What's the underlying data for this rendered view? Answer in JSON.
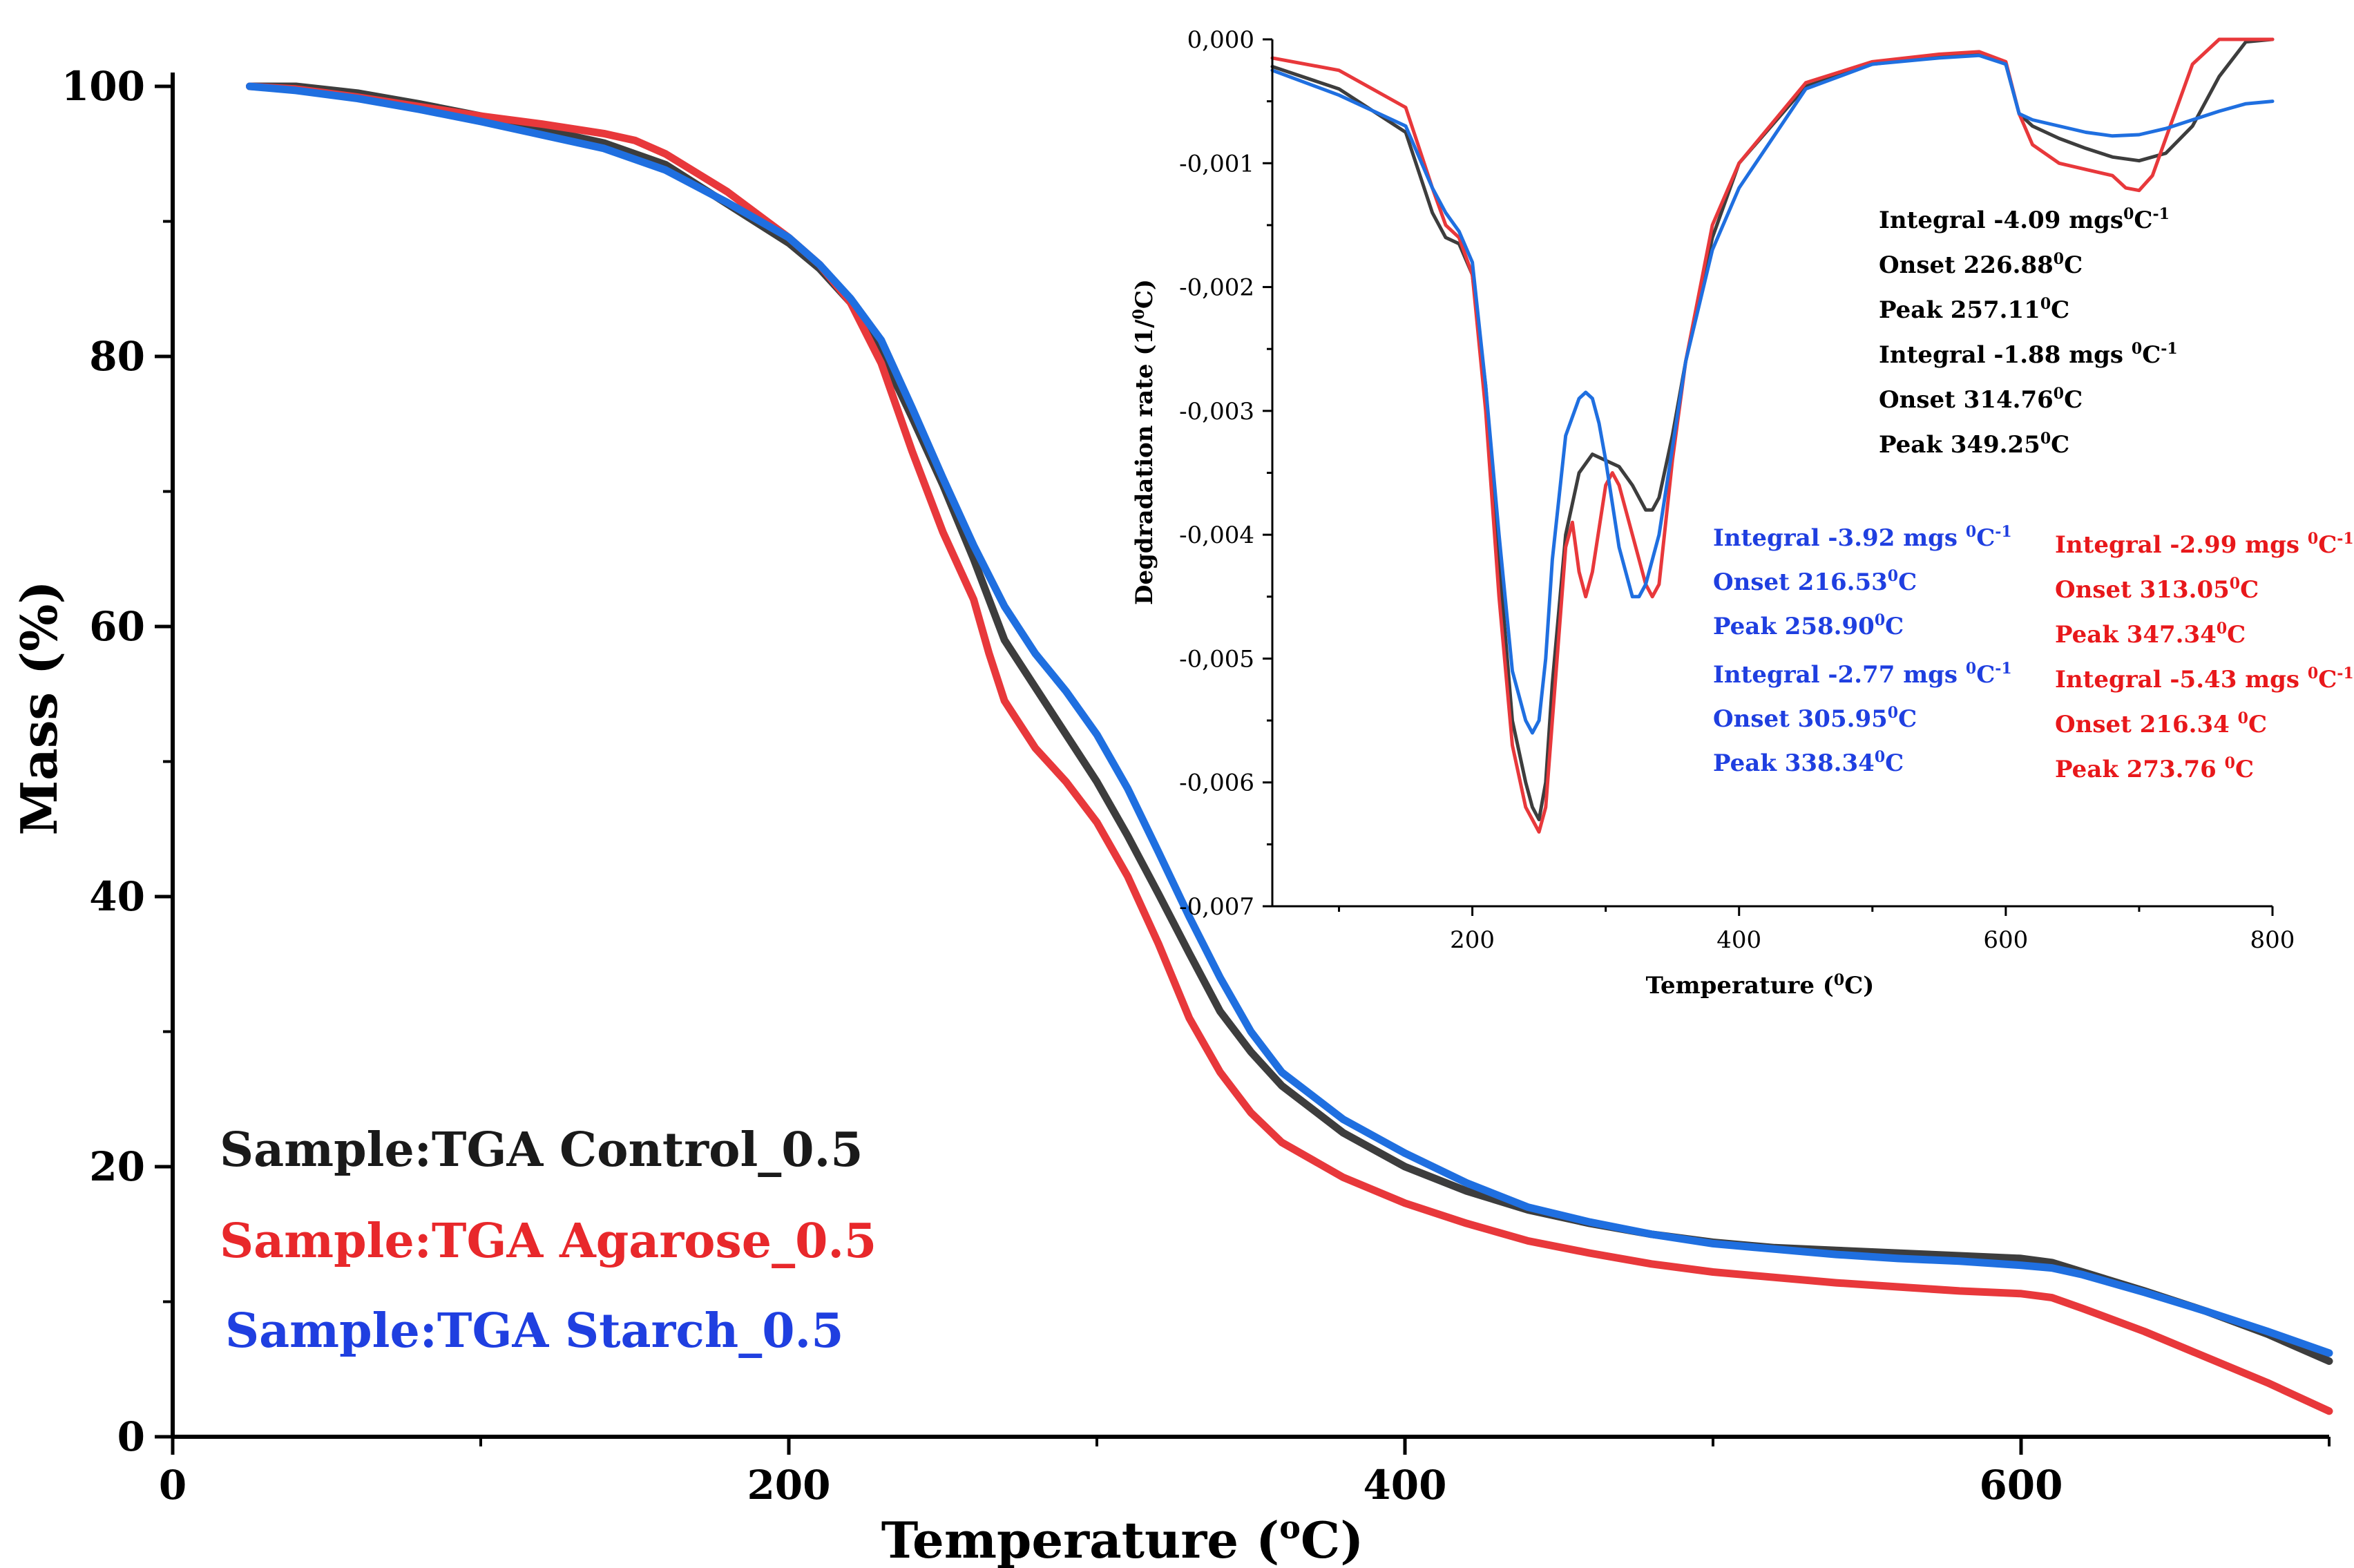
{
  "chart_data": [
    {
      "id": "main",
      "type": "line",
      "title": "",
      "xlabel": "Temperature (",
      "xlabel_sup": "o",
      "xlabel_suffix": "C)",
      "ylabel": "Mass (%)",
      "xlim": [
        0,
        700
      ],
      "ylim": [
        0,
        100
      ],
      "xticks": [
        0,
        200,
        400,
        600
      ],
      "yticks": [
        0,
        20,
        40,
        60,
        80,
        100
      ],
      "grid": false,
      "legend_position": "bottom-left",
      "series": [
        {
          "name": "Sample:TGA Control_0.5",
          "color": "#3d3d3d",
          "x": [
            25,
            40,
            60,
            80,
            100,
            120,
            140,
            160,
            180,
            200,
            210,
            220,
            230,
            240,
            250,
            260,
            265,
            270,
            280,
            290,
            300,
            310,
            320,
            330,
            340,
            350,
            360,
            380,
            400,
            420,
            440,
            460,
            480,
            500,
            520,
            540,
            560,
            580,
            600,
            610,
            620,
            640,
            660,
            680,
            700
          ],
          "y": [
            100,
            100,
            99.5,
            98.7,
            97.8,
            96.8,
            95.8,
            94.2,
            91.3,
            88.4,
            86.5,
            84.0,
            80.3,
            75.5,
            70.5,
            65.0,
            62.0,
            59.0,
            55.5,
            52.0,
            48.5,
            44.5,
            40.2,
            35.8,
            31.5,
            28.5,
            26.0,
            22.5,
            20.0,
            18.2,
            16.8,
            15.8,
            15.0,
            14.4,
            14.0,
            13.8,
            13.6,
            13.4,
            13.2,
            12.9,
            12.2,
            10.8,
            9.3,
            7.6,
            5.6
          ]
        },
        {
          "name": "Sample:TGA Agarose_0.5",
          "color": "#e8383b",
          "x": [
            25,
            40,
            60,
            80,
            100,
            120,
            140,
            150,
            160,
            180,
            200,
            210,
            220,
            230,
            240,
            250,
            260,
            265,
            270,
            280,
            290,
            300,
            310,
            320,
            330,
            340,
            350,
            360,
            380,
            400,
            420,
            440,
            460,
            480,
            500,
            520,
            540,
            560,
            580,
            600,
            610,
            620,
            640,
            660,
            680,
            700
          ],
          "y": [
            100,
            99.8,
            99.2,
            98.5,
            97.8,
            97.2,
            96.5,
            96.0,
            95.0,
            92.2,
            88.8,
            86.8,
            84.0,
            79.5,
            73.0,
            67.0,
            62.0,
            58.0,
            54.5,
            51.0,
            48.5,
            45.5,
            41.5,
            36.5,
            31.0,
            27.0,
            24.0,
            21.8,
            19.2,
            17.3,
            15.8,
            14.5,
            13.6,
            12.8,
            12.2,
            11.8,
            11.4,
            11.1,
            10.8,
            10.6,
            10.3,
            9.5,
            7.8,
            5.9,
            4.0,
            1.9
          ]
        },
        {
          "name": "Sample:TGA Starch_0.5",
          "color": "#1f6fe0",
          "x": [
            25,
            40,
            60,
            80,
            100,
            120,
            140,
            160,
            180,
            200,
            210,
            220,
            230,
            240,
            250,
            260,
            270,
            280,
            290,
            300,
            310,
            320,
            330,
            340,
            350,
            360,
            380,
            400,
            420,
            440,
            460,
            480,
            500,
            520,
            540,
            560,
            580,
            600,
            610,
            620,
            640,
            660,
            680,
            700
          ],
          "y": [
            100,
            99.7,
            99.1,
            98.3,
            97.4,
            96.4,
            95.4,
            93.8,
            91.4,
            88.8,
            86.8,
            84.3,
            81.2,
            76.2,
            71.0,
            66.0,
            61.5,
            58.0,
            55.2,
            52.0,
            48.0,
            43.3,
            38.5,
            34.0,
            30.0,
            27.0,
            23.5,
            21.0,
            18.8,
            17.0,
            15.9,
            15.0,
            14.3,
            13.9,
            13.5,
            13.2,
            13.0,
            12.7,
            12.5,
            12.0,
            10.7,
            9.3,
            7.8,
            6.2
          ]
        }
      ]
    },
    {
      "id": "inset",
      "type": "line",
      "title": "",
      "xlabel": "Temperature (",
      "xlabel_sup": "0",
      "xlabel_suffix": "C)",
      "ylabel": "Degdradation rate (1/",
      "ylabel_sup": "0",
      "ylabel_suffix": "C)",
      "xlim": [
        50,
        800
      ],
      "ylim": [
        -0.007,
        0
      ],
      "xticks": [
        200,
        400,
        600,
        800
      ],
      "xticks_minor": [
        100,
        300,
        500,
        700
      ],
      "yticks": [
        0,
        -0.001,
        -0.002,
        -0.003,
        -0.004,
        -0.005,
        -0.006,
        -0.007
      ],
      "ytick_labels": [
        "0,000",
        "-0,001",
        "-0,002",
        "-0,003",
        "-0,004",
        "-0,005",
        "-0,006",
        "-0,007"
      ],
      "grid": false,
      "series": [
        {
          "name": "Control",
          "color": "#3d3d3d",
          "x": [
            50,
            100,
            150,
            170,
            180,
            190,
            200,
            210,
            220,
            230,
            240,
            245,
            250,
            255,
            260,
            270,
            280,
            290,
            300,
            310,
            320,
            330,
            335,
            340,
            350,
            360,
            380,
            400,
            450,
            500,
            550,
            580,
            600,
            610,
            620,
            640,
            660,
            680,
            700,
            720,
            740,
            760,
            780,
            800
          ],
          "y": [
            -0.00022,
            -0.0004,
            -0.00075,
            -0.0014,
            -0.0016,
            -0.00165,
            -0.0019,
            -0.0028,
            -0.0042,
            -0.0055,
            -0.006,
            -0.0062,
            -0.0063,
            -0.006,
            -0.0052,
            -0.004,
            -0.0035,
            -0.00335,
            -0.0034,
            -0.00345,
            -0.0036,
            -0.0038,
            -0.0038,
            -0.0037,
            -0.0032,
            -0.0026,
            -0.0016,
            -0.001,
            -0.00038,
            -0.0002,
            -0.00014,
            -0.00012,
            -0.0002,
            -0.0006,
            -0.0007,
            -0.0008,
            -0.00088,
            -0.00095,
            -0.00098,
            -0.00092,
            -0.0007,
            -0.0003,
            -2e-05,
            0
          ]
        },
        {
          "name": "Agarose",
          "color": "#e8383b",
          "x": [
            50,
            100,
            150,
            170,
            180,
            190,
            200,
            210,
            220,
            230,
            240,
            245,
            250,
            255,
            260,
            270,
            275,
            280,
            285,
            290,
            300,
            305,
            310,
            320,
            330,
            335,
            340,
            350,
            360,
            380,
            400,
            450,
            500,
            550,
            580,
            600,
            610,
            620,
            640,
            660,
            680,
            690,
            700,
            710,
            720,
            740,
            760,
            780,
            800
          ],
          "y": [
            -0.00015,
            -0.00025,
            -0.00055,
            -0.0012,
            -0.0015,
            -0.0016,
            -0.0019,
            -0.003,
            -0.0045,
            -0.0057,
            -0.0062,
            -0.0063,
            -0.0064,
            -0.0062,
            -0.0055,
            -0.0041,
            -0.0039,
            -0.0043,
            -0.0045,
            -0.0043,
            -0.0036,
            -0.0035,
            -0.0036,
            -0.004,
            -0.0044,
            -0.0045,
            -0.0044,
            -0.0034,
            -0.0026,
            -0.0015,
            -0.001,
            -0.00035,
            -0.00018,
            -0.00012,
            -0.0001,
            -0.00018,
            -0.0006,
            -0.00085,
            -0.001,
            -0.00105,
            -0.0011,
            -0.0012,
            -0.00122,
            -0.0011,
            -0.0008,
            -0.0002,
            0,
            0,
            0
          ]
        },
        {
          "name": "Starch",
          "color": "#1f6fe0",
          "x": [
            50,
            100,
            150,
            170,
            180,
            190,
            200,
            210,
            220,
            230,
            240,
            245,
            250,
            255,
            260,
            270,
            280,
            285,
            290,
            295,
            300,
            310,
            320,
            325,
            330,
            340,
            350,
            360,
            380,
            400,
            450,
            500,
            550,
            580,
            600,
            610,
            620,
            640,
            660,
            680,
            700,
            720,
            740,
            760,
            780,
            800
          ],
          "y": [
            -0.00025,
            -0.00045,
            -0.0007,
            -0.0012,
            -0.0014,
            -0.00155,
            -0.0018,
            -0.0028,
            -0.004,
            -0.0051,
            -0.0055,
            -0.0056,
            -0.0055,
            -0.005,
            -0.0042,
            -0.0032,
            -0.0029,
            -0.00285,
            -0.0029,
            -0.0031,
            -0.0034,
            -0.0041,
            -0.0045,
            -0.0045,
            -0.0044,
            -0.004,
            -0.0033,
            -0.0026,
            -0.0017,
            -0.0012,
            -0.0004,
            -0.0002,
            -0.00015,
            -0.00013,
            -0.0002,
            -0.0006,
            -0.00065,
            -0.0007,
            -0.00075,
            -0.00078,
            -0.00077,
            -0.00072,
            -0.00065,
            -0.00058,
            -0.00052,
            -0.0005
          ]
        }
      ],
      "annotations": [
        {
          "color": "#000000",
          "lines": [
            {
              "text": "Integral -4.09 mgs",
              "sup": "0",
              "tail": "C",
              "sup2": "-1"
            },
            {
              "text": "Onset 226.88",
              "sup": "0",
              "tail": "C"
            },
            {
              "text": "Peak 257.11",
              "sup": "0",
              "tail": "C"
            },
            {
              "text": "Integral -1.88 mgs ",
              "sup": "0",
              "tail": "C",
              "sup2": "-1"
            },
            {
              "text": "Onset 314.76",
              "sup": "0",
              "tail": "C"
            },
            {
              "text": "Peak 349.25",
              "sup": "0",
              "tail": "C"
            }
          ]
        },
        {
          "color": "#1f3fe0",
          "lines": [
            {
              "text": "Integral -3.92 mgs ",
              "sup": "0",
              "tail": "C",
              "sup2": "-1"
            },
            {
              "text": "Onset 216.53",
              "sup": "0",
              "tail": "C"
            },
            {
              "text": "Peak 258.90",
              "sup": "0",
              "tail": "C"
            },
            {
              "text": "Integral -2.77 mgs ",
              "sup": "0",
              "tail": "C",
              "sup2": "-1"
            },
            {
              "text": "Onset 305.95",
              "sup": "0",
              "tail": "C"
            },
            {
              "text": "Peak 338.34",
              "sup": "0",
              "tail": "C"
            }
          ]
        },
        {
          "color": "#e8181b",
          "lines": [
            {
              "text": "Integral -2.99 mgs ",
              "sup": "0",
              "tail": "C",
              "sup2": "-1"
            },
            {
              "text": "Onset 313.05",
              "sup": "0",
              "tail": "C"
            },
            {
              "text": "Peak 347.34",
              "sup": "0",
              "tail": "C"
            },
            {
              "text": "Integral -5.43 mgs ",
              "sup": "0",
              "tail": "C",
              "sup2": "-1"
            },
            {
              "text": "Onset 216.34 ",
              "sup": "0",
              "tail": "C"
            },
            {
              "text": "Peak 273.76 ",
              "sup": "0",
              "tail": "C"
            }
          ]
        }
      ]
    }
  ]
}
